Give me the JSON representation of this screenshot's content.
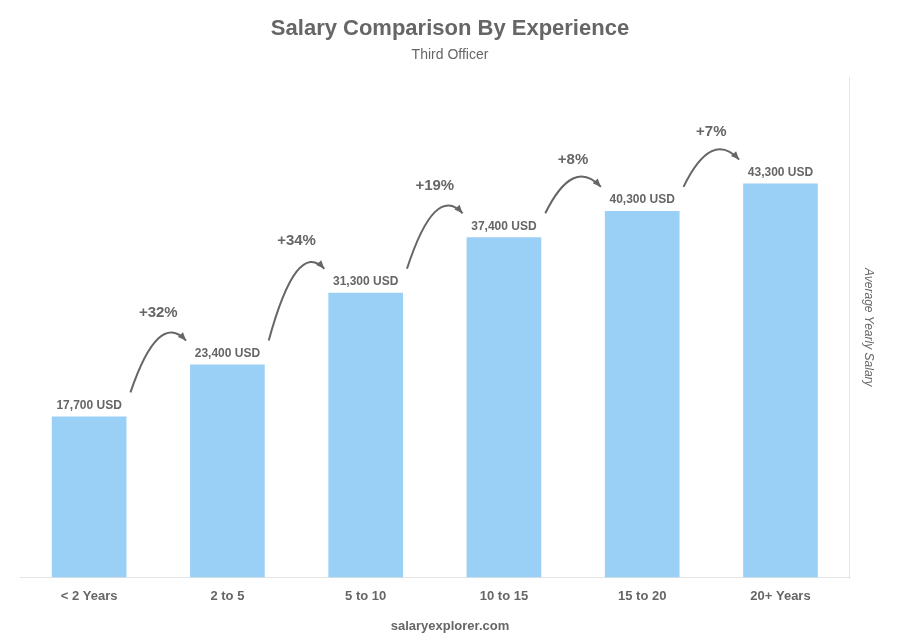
{
  "chart_data": {
    "type": "bar",
    "title": "Salary Comparison By Experience",
    "subtitle": "Third Officer",
    "ylabel": "Average Yearly Salary",
    "categories": [
      "< 2 Years",
      "2 to 5",
      "5 to 10",
      "10 to 15",
      "15 to 20",
      "20+ Years"
    ],
    "values": [
      17700,
      23400,
      31300,
      37400,
      40300,
      43300
    ],
    "value_labels": [
      "17,700 USD",
      "23,400 USD",
      "31,300 USD",
      "37,400 USD",
      "40,300 USD",
      "43,300 USD"
    ],
    "data_labels": true,
    "annotations": [
      "+32%",
      "+34%",
      "+19%",
      "+8%",
      "+7%"
    ],
    "footer": "salaryexplorer.com",
    "ylim": [
      0,
      55000
    ],
    "tick_labels": "x",
    "grid": false
  }
}
